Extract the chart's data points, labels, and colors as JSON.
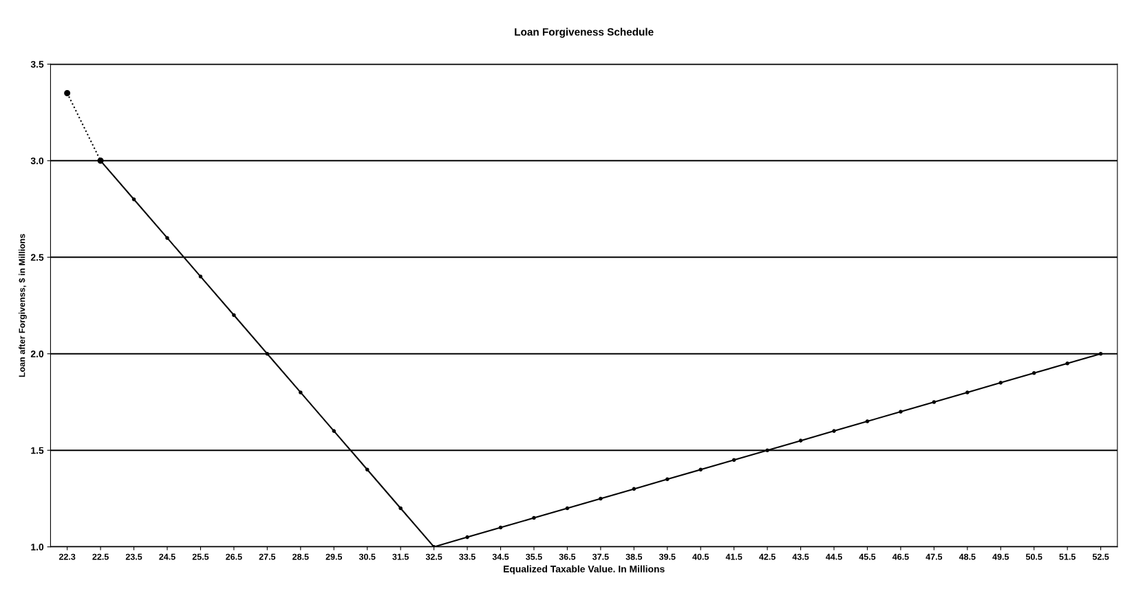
{
  "chart_data": {
    "type": "line",
    "title": "Loan Forgiveness Schedule",
    "xlabel": "Equalized Taxable Value. In Millions",
    "ylabel": "Loan after Forgivenss, $ in Millions",
    "categories": [
      "22.3",
      "22.5",
      "23.5",
      "24.5",
      "25.5",
      "26.5",
      "27.5",
      "28.5",
      "29.5",
      "30.5",
      "31.5",
      "32.5",
      "33.5",
      "34.5",
      "35.5",
      "36.5",
      "37.5",
      "38.5",
      "39.5",
      "40.5",
      "41.5",
      "42.5",
      "43.5",
      "44.5",
      "45.5",
      "46.5",
      "47.5",
      "48.5",
      "49.5",
      "50.5",
      "51.5",
      "52.5"
    ],
    "series": [
      {
        "color": "#000000",
        "line_style": "dotted",
        "values": [
          3.35,
          3.0,
          null,
          null,
          null,
          null,
          null,
          null,
          null,
          null,
          null,
          null,
          null,
          null,
          null,
          null,
          null,
          null,
          null,
          null,
          null,
          null,
          null,
          null,
          null,
          null,
          null,
          null,
          null,
          null,
          null,
          null
        ]
      },
      {
        "color": "#000000",
        "line_style": "solid",
        "values": [
          null,
          3.0,
          2.8,
          2.6,
          2.4,
          2.2,
          2.0,
          1.8,
          1.6,
          1.4,
          1.2,
          1.0,
          1.05,
          1.1,
          1.15,
          1.2,
          1.25,
          1.3,
          1.35,
          1.4,
          1.45,
          1.5,
          1.55,
          1.6,
          1.65,
          1.7,
          1.75,
          1.8,
          1.85,
          1.9,
          1.95,
          2.0
        ]
      }
    ],
    "ylim": [
      1.0,
      3.5
    ],
    "yticks": [
      {
        "value": 1.0,
        "label": "1.0"
      },
      {
        "value": 1.5,
        "label": "1.5"
      },
      {
        "value": 2.0,
        "label": "2.0"
      },
      {
        "value": 2.5,
        "label": "2.5"
      },
      {
        "value": 3.0,
        "label": "3.0"
      },
      {
        "value": 3.5,
        "label": "3.5"
      }
    ],
    "grid": "y",
    "marker": "circle",
    "legend": false
  }
}
